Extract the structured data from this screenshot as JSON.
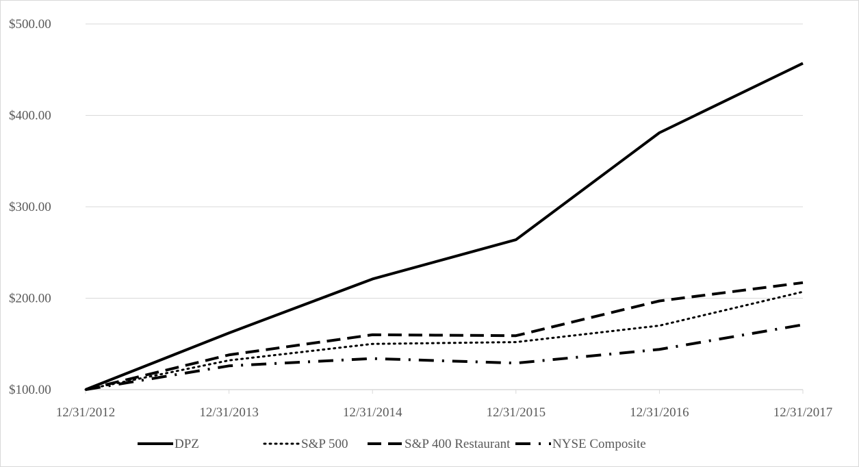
{
  "chart_data": {
    "type": "line",
    "title": "",
    "xlabel": "",
    "ylabel": "",
    "categories": [
      "12/31/2012",
      "12/31/2013",
      "12/31/2014",
      "12/31/2015",
      "12/31/2016",
      "12/31/2017"
    ],
    "ylim": [
      100,
      500
    ],
    "yticks": [
      "$100.00",
      "$200.00",
      "$300.00",
      "$400.00",
      "$500.00"
    ],
    "ytick_values": [
      100,
      200,
      300,
      400,
      500
    ],
    "grid": "horizontal",
    "legend_position": "bottom",
    "series": [
      {
        "name": "DPZ",
        "style": "solid",
        "values": [
          100,
          162,
          221,
          264,
          381,
          457
        ]
      },
      {
        "name": "S&P 500",
        "style": "dotted",
        "values": [
          100,
          132,
          150,
          152,
          170,
          207
        ]
      },
      {
        "name": "S&P 400 Restaurant",
        "style": "dashed",
        "values": [
          100,
          138,
          160,
          159,
          197,
          217
        ]
      },
      {
        "name": "NYSE Composite",
        "style": "dash-dot",
        "values": [
          100,
          126,
          134,
          129,
          144,
          171
        ]
      }
    ],
    "colors": {
      "lines": "#000000",
      "grid": "#d9d9d9",
      "text": "#595959"
    }
  }
}
